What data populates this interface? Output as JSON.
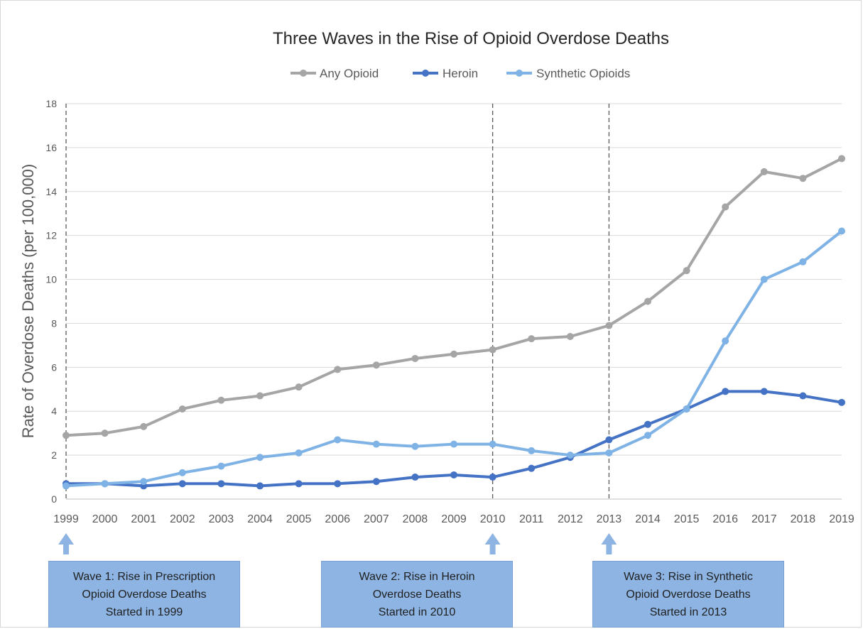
{
  "chart_data": {
    "type": "line",
    "title": "Three Waves in the Rise of Opioid Overdose Deaths",
    "ylabel": "Rate of Overdose Deaths (per 100,000)",
    "xlabel": "",
    "ylim": [
      0,
      18
    ],
    "yticks": [
      "0",
      "2",
      "4",
      "6",
      "8",
      "10",
      "12",
      "14",
      "16",
      "18"
    ],
    "grid": true,
    "legend_position": "top",
    "x": [
      "1999",
      "2000",
      "2001",
      "2002",
      "2003",
      "2004",
      "2005",
      "2006",
      "2007",
      "2008",
      "2009",
      "2010",
      "2011",
      "2012",
      "2013",
      "2014",
      "2015",
      "2016",
      "2017",
      "2018",
      "2019"
    ],
    "series": [
      {
        "name": "Any Opioid",
        "color": "#a5a5a5",
        "values": [
          2.9,
          3.0,
          3.3,
          4.1,
          4.5,
          4.7,
          5.1,
          5.9,
          6.1,
          6.4,
          6.6,
          6.8,
          7.3,
          7.4,
          7.9,
          9.0,
          10.4,
          13.3,
          14.9,
          14.6,
          15.5
        ]
      },
      {
        "name": "Heroin",
        "color": "#4472c4",
        "values": [
          0.7,
          0.7,
          0.6,
          0.7,
          0.7,
          0.6,
          0.7,
          0.7,
          0.8,
          1.0,
          1.1,
          1.0,
          1.4,
          1.9,
          2.7,
          3.4,
          4.1,
          4.9,
          4.9,
          4.7,
          4.4
        ]
      },
      {
        "name": "Synthetic Opioids",
        "color": "#7fb2e5",
        "values": [
          0.6,
          0.7,
          0.8,
          1.2,
          1.5,
          1.9,
          2.1,
          2.7,
          2.5,
          2.4,
          2.5,
          2.5,
          2.2,
          2.0,
          2.1,
          2.9,
          4.1,
          7.2,
          10.0,
          10.8,
          12.2
        ]
      }
    ],
    "reference_lines": [
      "1999",
      "2010",
      "2013"
    ],
    "annotations": [
      {
        "year": "1999",
        "lines": [
          "Wave 1: Rise in Prescription",
          "Opioid Overdose Deaths",
          "Started in 1999"
        ]
      },
      {
        "year": "2010",
        "lines": [
          "Wave 2: Rise in Heroin",
          "Overdose Deaths",
          "Started in 2010"
        ]
      },
      {
        "year": "2013",
        "lines": [
          "Wave 3: Rise in Synthetic",
          "Opioid Overdose Deaths",
          "Started in 2013"
        ]
      }
    ]
  },
  "colors": {
    "arrow": "#8db4e2",
    "box": "#8db4e2",
    "gridline": "#d9d9d9",
    "reference_line": "#595959"
  }
}
